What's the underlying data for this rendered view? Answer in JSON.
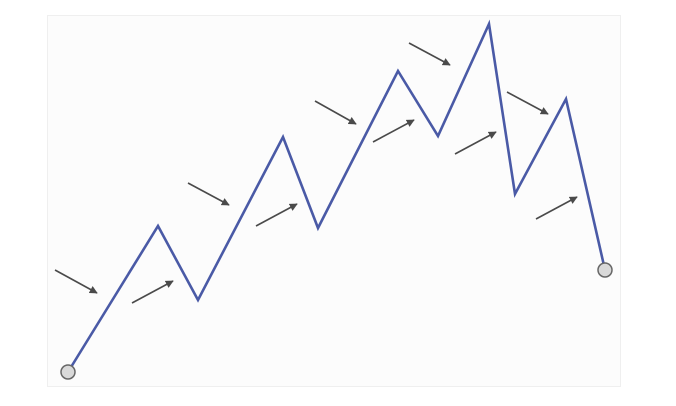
{
  "colors": {
    "background": "#ffffff",
    "panel": "#fcfcfc",
    "panel_border": "#efefef",
    "wave_line": "#4a5aa6",
    "arrow": "#4a4a4a",
    "endpoint_fill": "#d9d9d9",
    "endpoint_stroke": "#666666"
  },
  "icons": {
    "endpoint": "circle-marker-icon",
    "arrow": "arrow-right-icon"
  },
  "diagram": {
    "kind": "zigzag-trend-wave",
    "turning_points": 11,
    "start_marker": true,
    "end_marker": true,
    "arrows": [
      {
        "direction": "down-right"
      },
      {
        "direction": "up-right"
      },
      {
        "direction": "down-right"
      },
      {
        "direction": "up-right"
      },
      {
        "direction": "down-right"
      },
      {
        "direction": "up-right"
      },
      {
        "direction": "down-right"
      },
      {
        "direction": "up-right"
      },
      {
        "direction": "down-right"
      },
      {
        "direction": "up-right"
      }
    ]
  }
}
